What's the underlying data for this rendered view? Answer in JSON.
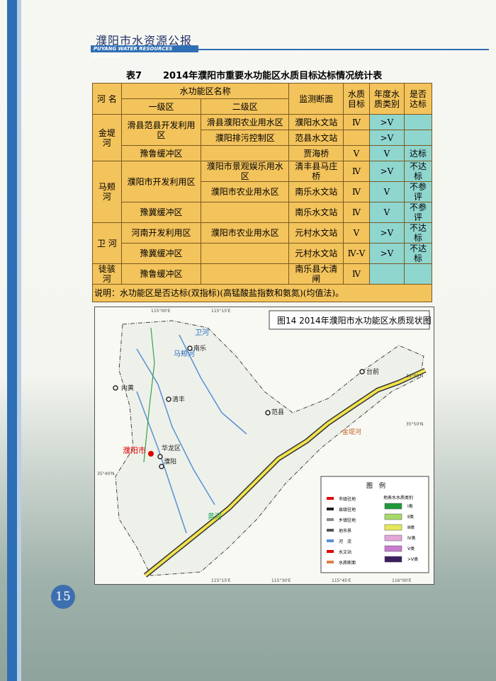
{
  "header": {
    "title": "濮阳市水资源公报",
    "subtitle": "PUYANG WATER RESOURCES BULLETIN"
  },
  "table": {
    "caption_no": "表7",
    "caption": "2014年濮阳市重要水功能区水质目标达标情况统计表",
    "headers": [
      "河 名",
      "水功能区名称",
      "一级区",
      "二级区",
      "监测断面",
      "水质目标",
      "年度水质类别",
      "是否达标"
    ],
    "rows": [
      [
        "金堤河",
        "滑县范县开发利用区",
        "滑县濮阳农业用水区",
        "濮阳水文站",
        "Ⅳ",
        ">Ⅴ",
        null
      ],
      [
        null,
        null,
        "濮阳排污控制区",
        "范县水文站",
        null,
        ">Ⅴ",
        null
      ],
      [
        null,
        "豫鲁缓冲区",
        null,
        "贾海桥",
        "Ⅴ",
        "Ⅴ",
        "达标"
      ],
      [
        "马颊河",
        "濮阳市开发利用区",
        "濮阳市景观娱乐用水区",
        "清丰县马庄桥",
        "Ⅳ",
        ">Ⅴ",
        "不达标"
      ],
      [
        null,
        null,
        "濮阳市农业用水区",
        "南乐水文站",
        "Ⅳ",
        "Ⅴ",
        "不参评"
      ],
      [
        null,
        "豫冀缓冲区",
        null,
        "南乐水文站",
        "Ⅳ",
        "Ⅴ",
        "不参评"
      ],
      [
        "卫 河",
        "河南开发利用区",
        "濮阳市农业用水区",
        "元村水文站",
        "Ⅴ",
        ">Ⅴ",
        "不达标"
      ],
      [
        null,
        "豫冀缓冲区",
        null,
        "元村水文站",
        "Ⅳ-Ⅴ",
        ">Ⅴ",
        "不达标"
      ],
      [
        "徒骇河",
        "豫鲁缓冲区",
        null,
        "南乐县大清闸",
        "Ⅳ",
        null,
        null
      ]
    ],
    "note": "说明：水功能区是否达标(双指标)(高锰酸盐指数和氨氮)(均值法)。"
  },
  "map": {
    "title": "图14  2014年濮阳市水功能区水质现状图",
    "labels": [
      "濮阳市",
      "华龙区",
      "濮阳",
      "内黄",
      "清丰",
      "南乐",
      "范县",
      "台前",
      "金堤河",
      "黄河",
      "马颊河",
      "卫河"
    ],
    "coords": [
      "115°00'E",
      "115°15'E",
      "115°15'E",
      "115°30'E",
      "115°45'E",
      "116°00'E",
      "36°00'N",
      "35°50'N",
      "35°40'N"
    ],
    "legend": {
      "title": "图　例",
      "symbols": [
        "市级驻地",
        "县级驻地",
        "乡镇驻地",
        "地市界",
        "河　流",
        "水文站",
        "水质断面"
      ],
      "class_title": "地表水水质类别",
      "classes": [
        "Ⅰ类",
        "Ⅱ类",
        "Ⅲ类",
        "Ⅳ类",
        "Ⅴ类",
        ">Ⅴ类"
      ]
    }
  },
  "page_number": "15"
}
